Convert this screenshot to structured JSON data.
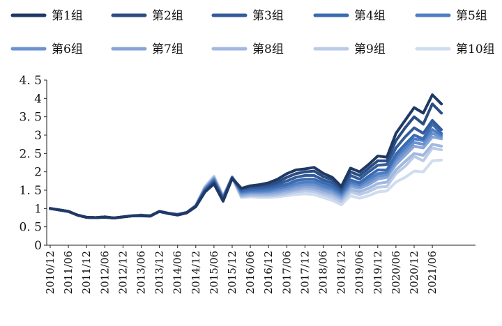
{
  "chart_data": {
    "type": "line",
    "title": "",
    "xlabel": "",
    "ylabel": "",
    "ylim": [
      0,
      4.5
    ],
    "yticks": [
      "0",
      "0. 5",
      "1",
      "1. 5",
      "2",
      "2. 5",
      "3",
      "3. 5",
      "4",
      "4. 5"
    ],
    "ytick_values": [
      0,
      0.5,
      1,
      1.5,
      2,
      2.5,
      3,
      3.5,
      4,
      4.5
    ],
    "x_tick_labels": [
      "2010/12",
      "2011/06",
      "2011/12",
      "2012/06",
      "2012/12",
      "2013/06",
      "2013/12",
      "2014/06",
      "2014/12",
      "2015/06",
      "2015/12",
      "2016/06",
      "2016/12",
      "2017/06",
      "2017/12",
      "2018/06",
      "2018/12",
      "2019/06",
      "2019/12",
      "2020/06",
      "2020/12",
      "2021/06"
    ],
    "x": [
      "2010/12",
      "2011/03",
      "2011/06",
      "2011/09",
      "2011/12",
      "2012/03",
      "2012/06",
      "2012/09",
      "2012/12",
      "2013/03",
      "2013/06",
      "2013/09",
      "2013/12",
      "2014/03",
      "2014/06",
      "2014/09",
      "2014/12",
      "2015/03",
      "2015/06",
      "2015/09",
      "2015/12",
      "2016/03",
      "2016/06",
      "2016/09",
      "2016/12",
      "2017/03",
      "2017/06",
      "2017/09",
      "2017/12",
      "2018/03",
      "2018/06",
      "2018/09",
      "2018/12",
      "2019/03",
      "2019/06",
      "2019/09",
      "2019/12",
      "2020/03",
      "2020/06",
      "2020/09",
      "2020/12",
      "2021/03",
      "2021/06",
      "2021/09"
    ],
    "legend_position": "top",
    "grid": false,
    "series": [
      {
        "name": "第1组",
        "color": "#203864",
        "values": [
          1.0,
          0.96,
          0.92,
          0.82,
          0.76,
          0.75,
          0.76,
          0.74,
          0.77,
          0.8,
          0.8,
          0.79,
          0.92,
          0.86,
          0.82,
          0.88,
          1.05,
          1.45,
          1.67,
          1.2,
          1.82,
          1.55,
          1.62,
          1.65,
          1.7,
          1.8,
          1.95,
          2.05,
          2.08,
          2.12,
          1.96,
          1.85,
          1.6,
          2.1,
          2.0,
          2.2,
          2.43,
          2.4,
          3.05,
          3.4,
          3.75,
          3.6,
          4.1,
          3.85
        ]
      },
      {
        "name": "第2组",
        "color": "#2B4D82",
        "values": [
          1.0,
          0.96,
          0.92,
          0.82,
          0.76,
          0.75,
          0.77,
          0.74,
          0.77,
          0.8,
          0.81,
          0.8,
          0.92,
          0.87,
          0.83,
          0.89,
          1.05,
          1.45,
          1.7,
          1.22,
          1.83,
          1.55,
          1.6,
          1.62,
          1.65,
          1.72,
          1.85,
          1.95,
          2.0,
          2.02,
          1.87,
          1.78,
          1.55,
          2.0,
          1.9,
          2.1,
          2.3,
          2.3,
          2.85,
          3.2,
          3.5,
          3.3,
          3.85,
          3.6
        ]
      },
      {
        "name": "第3组",
        "color": "#335C9A",
        "values": [
          1.0,
          0.96,
          0.92,
          0.82,
          0.76,
          0.75,
          0.77,
          0.74,
          0.77,
          0.8,
          0.81,
          0.8,
          0.92,
          0.87,
          0.84,
          0.89,
          1.06,
          1.48,
          1.72,
          1.25,
          1.84,
          1.52,
          1.57,
          1.58,
          1.6,
          1.66,
          1.75,
          1.85,
          1.9,
          1.9,
          1.78,
          1.7,
          1.5,
          1.9,
          1.8,
          2.0,
          2.18,
          2.2,
          2.65,
          2.95,
          3.2,
          3.05,
          3.4,
          3.15
        ]
      },
      {
        "name": "第4组",
        "color": "#3C6BB0",
        "values": [
          1.0,
          0.96,
          0.92,
          0.82,
          0.76,
          0.75,
          0.77,
          0.74,
          0.77,
          0.8,
          0.81,
          0.8,
          0.92,
          0.87,
          0.84,
          0.89,
          1.06,
          1.5,
          1.75,
          1.27,
          1.84,
          1.48,
          1.52,
          1.53,
          1.55,
          1.6,
          1.66,
          1.76,
          1.8,
          1.8,
          1.7,
          1.62,
          1.45,
          1.78,
          1.7,
          1.88,
          2.05,
          2.05,
          2.48,
          2.75,
          3.0,
          2.9,
          3.3,
          3.05
        ]
      },
      {
        "name": "第5组",
        "color": "#4E7FC5",
        "values": [
          1.0,
          0.96,
          0.92,
          0.82,
          0.76,
          0.75,
          0.77,
          0.74,
          0.77,
          0.8,
          0.81,
          0.8,
          0.92,
          0.87,
          0.84,
          0.89,
          1.07,
          1.52,
          1.78,
          1.28,
          1.85,
          1.45,
          1.48,
          1.48,
          1.5,
          1.55,
          1.6,
          1.68,
          1.72,
          1.72,
          1.62,
          1.55,
          1.4,
          1.72,
          1.65,
          1.8,
          1.95,
          1.98,
          2.4,
          2.65,
          2.9,
          2.85,
          3.15,
          3.0
        ]
      },
      {
        "name": "第6组",
        "color": "#6C92CF",
        "values": [
          1.0,
          0.96,
          0.92,
          0.82,
          0.76,
          0.75,
          0.77,
          0.74,
          0.77,
          0.8,
          0.81,
          0.8,
          0.92,
          0.87,
          0.84,
          0.89,
          1.07,
          1.53,
          1.8,
          1.3,
          1.86,
          1.42,
          1.45,
          1.45,
          1.46,
          1.5,
          1.55,
          1.62,
          1.66,
          1.65,
          1.56,
          1.5,
          1.35,
          1.66,
          1.6,
          1.72,
          1.88,
          1.92,
          2.3,
          2.55,
          2.8,
          2.75,
          3.05,
          2.95
        ]
      },
      {
        "name": "第7组",
        "color": "#87A5D6",
        "values": [
          1.0,
          0.96,
          0.92,
          0.82,
          0.76,
          0.75,
          0.77,
          0.74,
          0.77,
          0.8,
          0.82,
          0.8,
          0.92,
          0.87,
          0.84,
          0.89,
          1.08,
          1.55,
          1.82,
          1.3,
          1.85,
          1.38,
          1.42,
          1.42,
          1.42,
          1.45,
          1.5,
          1.55,
          1.6,
          1.58,
          1.5,
          1.44,
          1.3,
          1.6,
          1.55,
          1.65,
          1.8,
          1.85,
          2.2,
          2.45,
          2.7,
          2.65,
          2.95,
          2.9
        ]
      },
      {
        "name": "第8组",
        "color": "#A1B8DF",
        "values": [
          1.0,
          0.96,
          0.92,
          0.82,
          0.76,
          0.75,
          0.77,
          0.74,
          0.77,
          0.8,
          0.82,
          0.8,
          0.92,
          0.87,
          0.84,
          0.89,
          1.08,
          1.57,
          1.85,
          1.32,
          1.85,
          1.35,
          1.38,
          1.38,
          1.38,
          1.4,
          1.45,
          1.5,
          1.54,
          1.52,
          1.44,
          1.38,
          1.25,
          1.52,
          1.46,
          1.55,
          1.68,
          1.72,
          2.05,
          2.28,
          2.5,
          2.45,
          2.75,
          2.7
        ]
      },
      {
        "name": "第9组",
        "color": "#BBCBE7",
        "values": [
          1.0,
          0.96,
          0.92,
          0.82,
          0.76,
          0.75,
          0.77,
          0.74,
          0.77,
          0.8,
          0.82,
          0.8,
          0.92,
          0.87,
          0.84,
          0.89,
          1.09,
          1.58,
          1.87,
          1.33,
          1.85,
          1.32,
          1.35,
          1.34,
          1.34,
          1.36,
          1.4,
          1.45,
          1.48,
          1.46,
          1.38,
          1.3,
          1.18,
          1.45,
          1.38,
          1.46,
          1.58,
          1.6,
          1.95,
          2.15,
          2.42,
          2.3,
          2.65,
          2.6
        ]
      },
      {
        "name": "第10组",
        "color": "#D0DCEF",
        "values": [
          1.0,
          0.96,
          0.92,
          0.82,
          0.76,
          0.75,
          0.77,
          0.74,
          0.77,
          0.8,
          0.82,
          0.8,
          0.92,
          0.87,
          0.84,
          0.89,
          1.09,
          1.6,
          1.88,
          1.35,
          1.84,
          1.3,
          1.32,
          1.3,
          1.3,
          1.32,
          1.35,
          1.38,
          1.4,
          1.38,
          1.3,
          1.22,
          1.1,
          1.35,
          1.28,
          1.35,
          1.45,
          1.48,
          1.72,
          1.85,
          2.02,
          2.0,
          2.3,
          2.32
        ]
      }
    ]
  }
}
